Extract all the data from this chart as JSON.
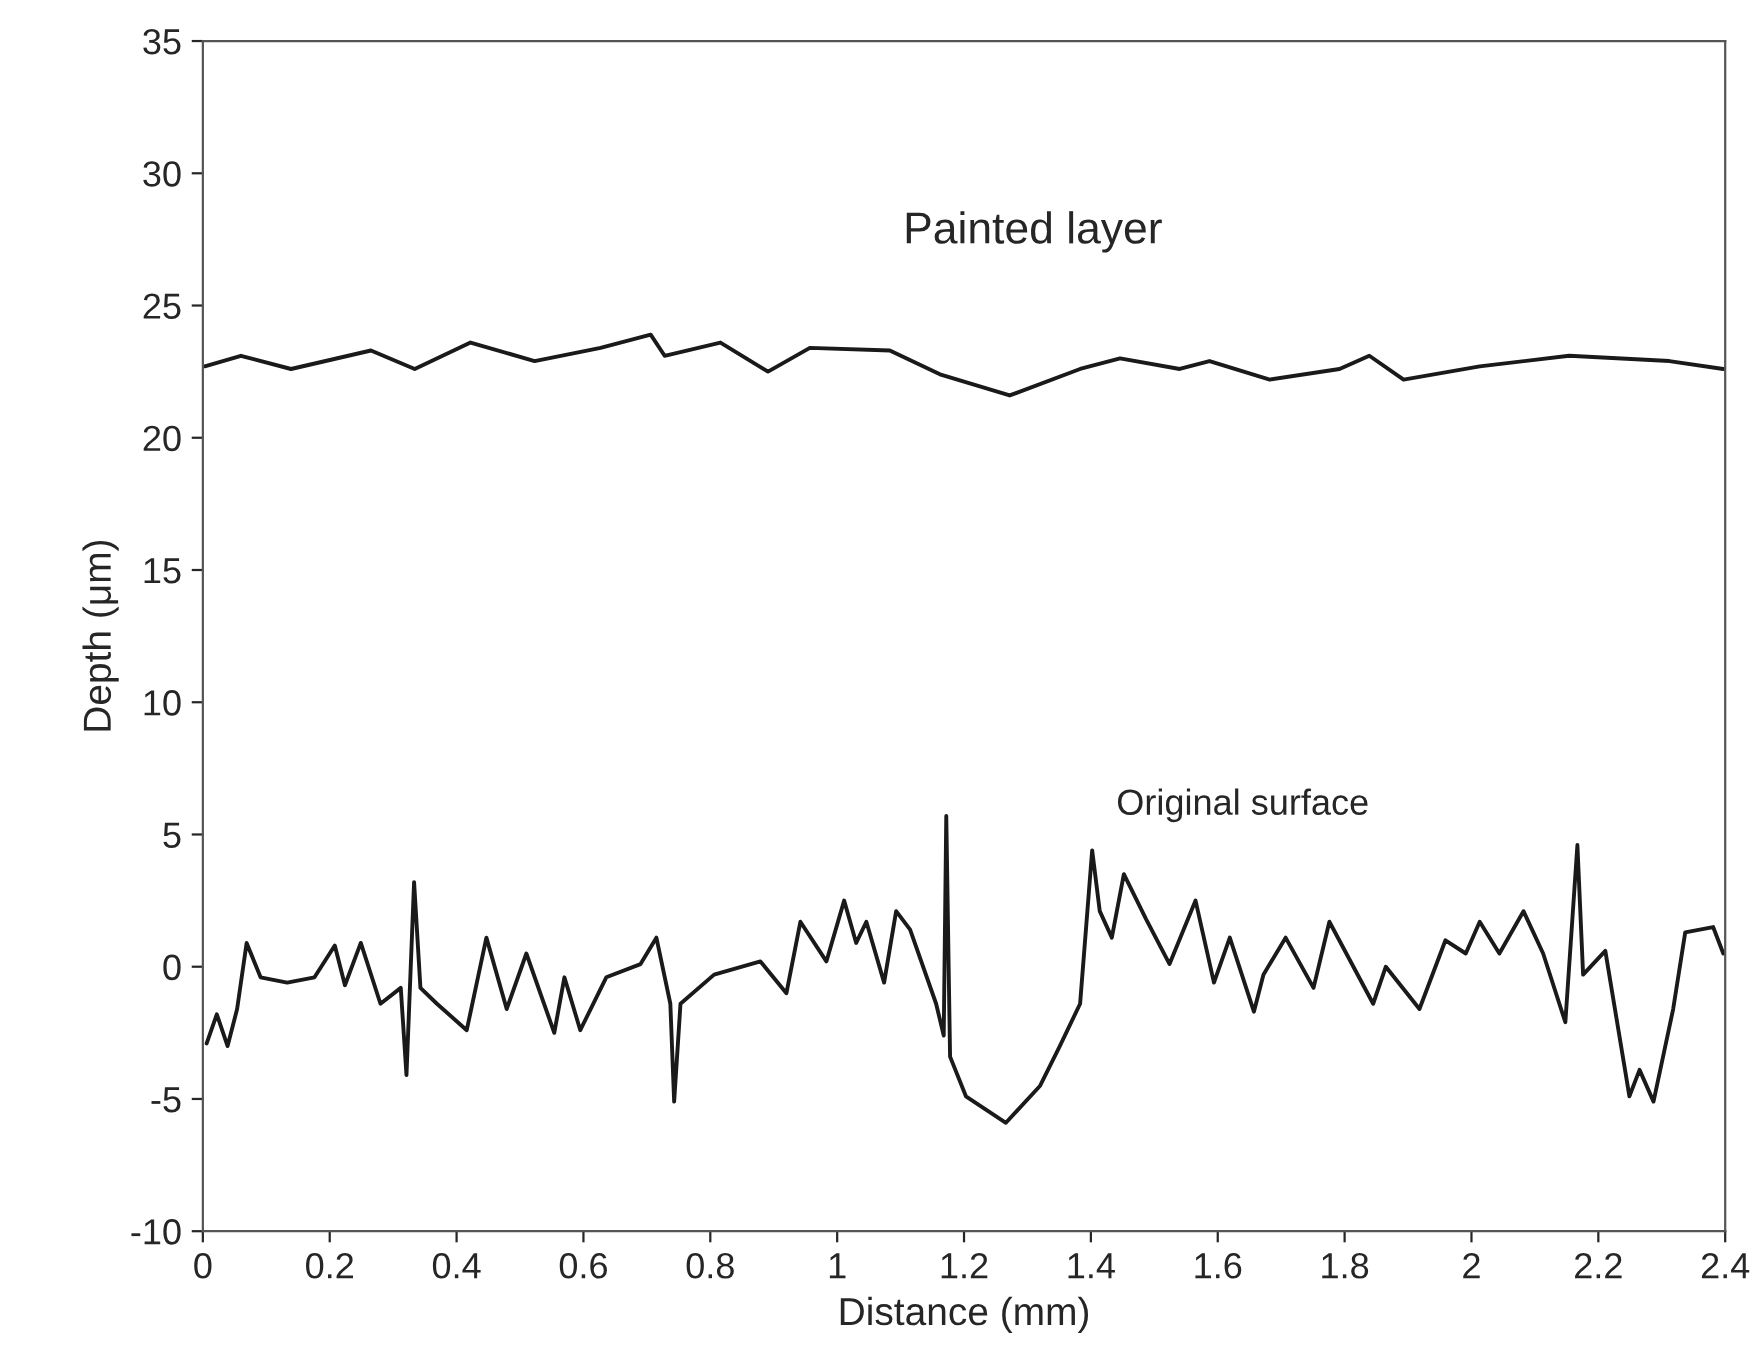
{
  "chart_data": {
    "type": "line",
    "xlabel": "Distance (mm)",
    "ylabel": "Depth (μm)",
    "xlim": [
      0,
      2.4
    ],
    "ylim": [
      -10,
      35
    ],
    "xticks": [
      0,
      0.2,
      0.4,
      0.6,
      0.8,
      1,
      1.2,
      1.4,
      1.6,
      1.8,
      2,
      2.2,
      2.4
    ],
    "yticks": [
      -10,
      -5,
      0,
      5,
      10,
      15,
      20,
      25,
      30,
      35
    ],
    "grid": false,
    "legend": false,
    "marker": "none",
    "line_style": "solid",
    "annotations": [
      "Painted layer",
      "Original surface"
    ],
    "series": [
      {
        "color": "#1a1a1a",
        "x": [
          0.003,
          0.06,
          0.139,
          0.265,
          0.334,
          0.422,
          0.523,
          0.627,
          0.706,
          0.728,
          0.816,
          0.891,
          0.957,
          1.083,
          1.162,
          1.272,
          1.383,
          1.446,
          1.54,
          1.587,
          1.682,
          1.792,
          1.839,
          1.893,
          2.013,
          2.154,
          2.312,
          2.397
        ],
        "values": [
          22.7,
          23.1,
          22.6,
          23.3,
          22.6,
          23.6,
          22.9,
          23.4,
          23.9,
          23.1,
          23.6,
          22.5,
          23.4,
          23.3,
          22.4,
          21.6,
          22.6,
          23.0,
          22.6,
          22.9,
          22.2,
          22.6,
          23.1,
          22.2,
          22.7,
          23.1,
          22.9,
          22.6
        ]
      },
      {
        "color": "#1a1a1a",
        "x": [
          0.006,
          0.022,
          0.039,
          0.054,
          0.069,
          0.091,
          0.133,
          0.176,
          0.208,
          0.224,
          0.249,
          0.28,
          0.312,
          0.321,
          0.333,
          0.343,
          0.369,
          0.416,
          0.447,
          0.479,
          0.51,
          0.554,
          0.57,
          0.595,
          0.636,
          0.69,
          0.715,
          0.737,
          0.743,
          0.753,
          0.806,
          0.879,
          0.92,
          0.942,
          0.983,
          1.011,
          1.03,
          1.046,
          1.074,
          1.093,
          1.115,
          1.156,
          1.168,
          1.172,
          1.178,
          1.203,
          1.247,
          1.266,
          1.32,
          1.351,
          1.383,
          1.402,
          1.414,
          1.433,
          1.452,
          1.487,
          1.524,
          1.565,
          1.594,
          1.619,
          1.657,
          1.672,
          1.707,
          1.751,
          1.776,
          1.845,
          1.865,
          1.918,
          1.959,
          1.991,
          2.013,
          2.044,
          2.082,
          2.113,
          2.148,
          2.167,
          2.176,
          2.211,
          2.249,
          2.265,
          2.287,
          2.318,
          2.337,
          2.381,
          2.397
        ],
        "values": [
          -2.9,
          -1.8,
          -3.0,
          -1.6,
          0.9,
          -0.4,
          -0.6,
          -0.4,
          0.8,
          -0.7,
          0.9,
          -1.4,
          -0.8,
          -4.1,
          3.2,
          -0.8,
          -1.4,
          -2.4,
          1.1,
          -1.6,
          0.5,
          -2.5,
          -0.4,
          -2.4,
          -0.4,
          0.1,
          1.1,
          -1.4,
          -5.1,
          -1.4,
          -0.3,
          0.2,
          -1.0,
          1.7,
          0.2,
          2.5,
          0.9,
          1.7,
          -0.6,
          2.1,
          1.4,
          -1.4,
          -2.6,
          5.7,
          -3.4,
          -4.9,
          -5.6,
          -5.9,
          -4.5,
          -3.0,
          -1.4,
          4.4,
          2.1,
          1.1,
          3.5,
          1.8,
          0.1,
          2.5,
          -0.6,
          1.1,
          -1.7,
          -0.3,
          1.1,
          -0.8,
          1.7,
          -1.4,
          0.0,
          -1.6,
          1.0,
          0.5,
          1.7,
          0.5,
          2.1,
          0.5,
          -2.1,
          4.6,
          -0.3,
          0.6,
          -4.9,
          -3.9,
          -5.1,
          -1.6,
          1.3,
          1.5,
          0.5
        ]
      }
    ]
  }
}
